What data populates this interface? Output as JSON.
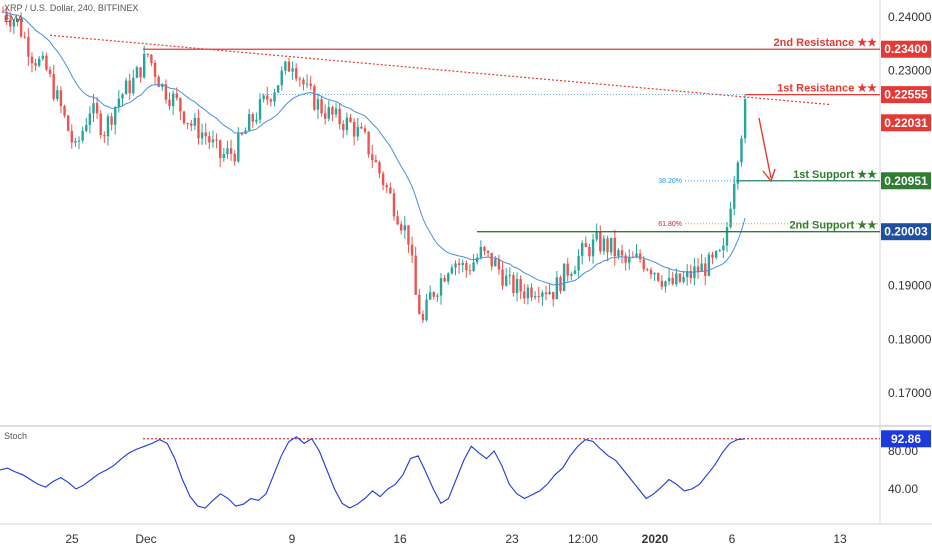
{
  "header": {
    "symbol_line": "XRP / U.S. Dollar, 240, BITFINEX",
    "indicator": "EMA"
  },
  "stoch_label": "Stoch",
  "colors": {
    "up": "#26a69a",
    "down": "#ef5350",
    "ema": "#4a90d9",
    "resistance": "#e53935",
    "support": "#2e7d32",
    "stoch": "#1e3adb",
    "fib": "#2196f3"
  },
  "chart_data": [
    {
      "type": "candlestick",
      "title": "",
      "x_ticks": [
        "25",
        "Dec",
        "9",
        "16",
        "23",
        "12:00",
        "2020",
        "6",
        "13"
      ],
      "y_ticks": [
        "0.24000",
        "0.23000",
        "0.22000",
        "0.21000",
        "0.20000",
        "0.19000",
        "0.18000",
        "0.17000"
      ],
      "ylim": [
        0.1675,
        0.2425
      ],
      "price_path": [
        [
          0,
          0.241
        ],
        [
          4,
          0.239
        ],
        [
          8,
          0.233
        ],
        [
          12,
          0.23
        ],
        [
          16,
          0.223
        ],
        [
          20,
          0.215
        ],
        [
          24,
          0.223
        ],
        [
          28,
          0.219
        ],
        [
          32,
          0.225
        ],
        [
          36,
          0.228
        ],
        [
          40,
          0.233
        ],
        [
          44,
          0.227
        ],
        [
          48,
          0.224
        ],
        [
          52,
          0.22
        ],
        [
          56,
          0.218
        ],
        [
          60,
          0.214
        ],
        [
          64,
          0.215
        ],
        [
          68,
          0.22
        ],
        [
          72,
          0.224
        ],
        [
          76,
          0.228
        ],
        [
          80,
          0.232
        ],
        [
          84,
          0.226
        ],
        [
          88,
          0.223
        ],
        [
          92,
          0.221
        ],
        [
          96,
          0.22
        ],
        [
          100,
          0.217
        ],
        [
          104,
          0.211
        ],
        [
          108,
          0.205
        ],
        [
          112,
          0.199
        ],
        [
          114,
          0.188
        ],
        [
          116,
          0.183
        ],
        [
          118,
          0.188
        ],
        [
          120,
          0.19
        ],
        [
          124,
          0.195
        ],
        [
          128,
          0.193
        ],
        [
          132,
          0.196
        ],
        [
          136,
          0.194
        ],
        [
          140,
          0.19
        ],
        [
          144,
          0.189
        ],
        [
          148,
          0.19
        ],
        [
          152,
          0.189
        ],
        [
          156,
          0.193
        ],
        [
          160,
          0.196
        ],
        [
          164,
          0.198
        ],
        [
          168,
          0.197
        ],
        [
          172,
          0.194
        ],
        [
          176,
          0.195
        ],
        [
          180,
          0.193
        ],
        [
          184,
          0.19
        ],
        [
          188,
          0.191
        ],
        [
          192,
          0.193
        ],
        [
          196,
          0.194
        ],
        [
          199,
          0.196
        ],
        [
          201,
          0.206
        ],
        [
          203,
          0.215
        ],
        [
          205,
          0.223
        ]
      ],
      "levels": [
        {
          "name": "2nd Resistance",
          "stars": "★★",
          "value": "0.23400"
        },
        {
          "name": "1st Resistance",
          "stars": "★★",
          "value": "0.22555"
        },
        {
          "name": "1st Support",
          "stars": "★★",
          "value": "0.20951"
        },
        {
          "name": "2nd Support",
          "stars": "★★",
          "value": "0.20003"
        }
      ],
      "current_price": "0.22031",
      "fibonacci": [
        {
          "label": "38.20%",
          "value": 0.2095
        },
        {
          "label": "61.80%",
          "value": 0.2015
        }
      ]
    },
    {
      "type": "line",
      "title": "Stoch",
      "y_ticks": [
        "80.00",
        "40.00"
      ],
      "ylim": [
        5,
        105
      ],
      "current_value": "92.86",
      "overbought_line": 92.86,
      "values": [
        60,
        62,
        58,
        55,
        50,
        45,
        42,
        48,
        52,
        47,
        40,
        44,
        50,
        56,
        60,
        65,
        72,
        78,
        82,
        85,
        88,
        92,
        88,
        72,
        50,
        32,
        22,
        20,
        28,
        35,
        30,
        22,
        24,
        30,
        28,
        35,
        55,
        75,
        90,
        95,
        88,
        93,
        80,
        60,
        40,
        25,
        20,
        24,
        30,
        38,
        32,
        40,
        45,
        55,
        72,
        75,
        58,
        40,
        25,
        30,
        50,
        70,
        85,
        78,
        72,
        80,
        65,
        45,
        35,
        30,
        34,
        38,
        45,
        55,
        62,
        75,
        85,
        92,
        90,
        82,
        75,
        70,
        60,
        50,
        40,
        30,
        35,
        42,
        50,
        45,
        38,
        40,
        45,
        55,
        65,
        78,
        88,
        92,
        92.86
      ]
    }
  ]
}
